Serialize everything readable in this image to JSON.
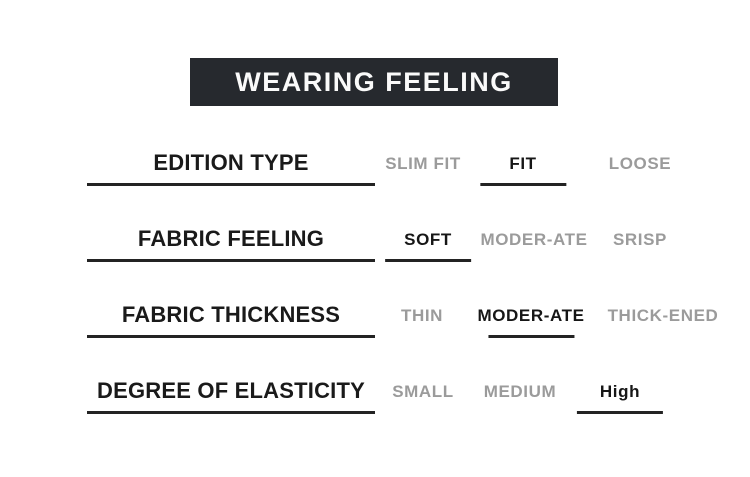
{
  "header": {
    "title": "WEARING FEELING"
  },
  "colors": {
    "header_bg": "#26292e",
    "header_text": "#fafafa",
    "selected_text": "#161616",
    "unselected_text": "#9b9b9b",
    "underline": "#232323",
    "background": "#ffffff"
  },
  "rows": [
    {
      "label": "EDITION TYPE",
      "options": [
        {
          "text": "SLIM FIT",
          "selected": false
        },
        {
          "text": "FIT",
          "selected": true
        },
        {
          "text": "LOOSE",
          "selected": false
        }
      ]
    },
    {
      "label": "FABRIC FEELING",
      "options": [
        {
          "text": "SOFT",
          "selected": true
        },
        {
          "text": "MODER-ATE",
          "selected": false
        },
        {
          "text": "SRISP",
          "selected": false
        }
      ]
    },
    {
      "label": "FABRIC THICKNESS",
      "options": [
        {
          "text": "THIN",
          "selected": false
        },
        {
          "text": "MODER-ATE",
          "selected": true
        },
        {
          "text": "THICK-ENED",
          "selected": false
        }
      ]
    },
    {
      "label": "DEGREE OF ELASTICITY",
      "options": [
        {
          "text": "SMALL",
          "selected": false
        },
        {
          "text": "MEDIUM",
          "selected": false
        },
        {
          "text": "High",
          "selected": true
        }
      ]
    }
  ],
  "chart_data": {
    "type": "table",
    "title": "WEARING FEELING",
    "columns": [
      "attribute",
      "option_1",
      "option_2",
      "option_3"
    ],
    "rows": [
      [
        "EDITION TYPE",
        "SLIM FIT",
        "FIT",
        "LOOSE"
      ],
      [
        "FABRIC FEELING",
        "SOFT",
        "MODER-ATE",
        "SRISP"
      ],
      [
        "FABRIC THICKNESS",
        "THIN",
        "MODER-ATE",
        "THICK-ENED"
      ],
      [
        "DEGREE OF ELASTICITY",
        "SMALL",
        "MEDIUM",
        "High"
      ]
    ],
    "selected_per_row": [
      "FIT",
      "SOFT",
      "MODER-ATE",
      "High"
    ],
    "legend_position": "none",
    "grid": false
  }
}
